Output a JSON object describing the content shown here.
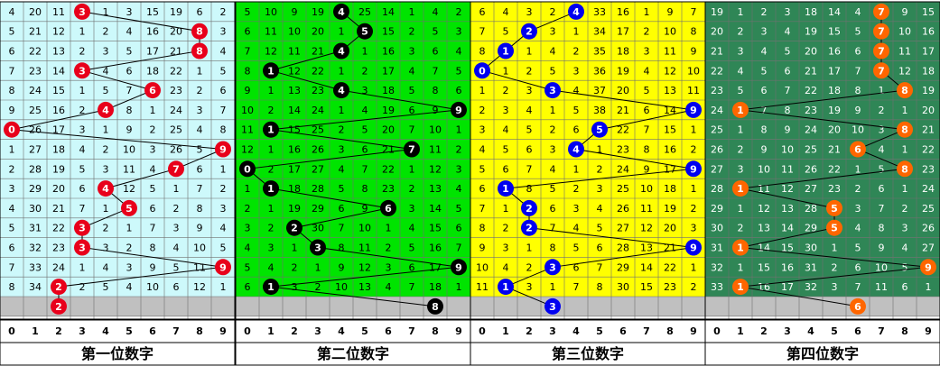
{
  "chart_data": {
    "type": "table",
    "columns_per_section": 10,
    "column_digits": [
      "0",
      "1",
      "2",
      "3",
      "4",
      "5",
      "6",
      "7",
      "8",
      "9"
    ],
    "sections": [
      {
        "title": "第一位数字",
        "cell_color": "#cdf9fb",
        "ball_color": "#e8001b",
        "line_color": "#000000",
        "rows": [
          [
            "4",
            "20",
            "11",
            "3",
            "1",
            "3",
            "15",
            "19",
            "6",
            "2"
          ],
          [
            "5",
            "21",
            "12",
            "1",
            "2",
            "4",
            "16",
            "20",
            "8",
            "3"
          ],
          [
            "6",
            "22",
            "13",
            "2",
            "3",
            "5",
            "17",
            "21",
            "8",
            "4"
          ],
          [
            "7",
            "23",
            "14",
            "3",
            "4",
            "6",
            "18",
            "22",
            "1",
            "5"
          ],
          [
            "8",
            "24",
            "15",
            "1",
            "5",
            "7",
            "6",
            "23",
            "2",
            "6"
          ],
          [
            "9",
            "25",
            "16",
            "2",
            "4",
            "8",
            "1",
            "24",
            "3",
            "7"
          ],
          [
            "0",
            "26",
            "17",
            "3",
            "1",
            "9",
            "2",
            "25",
            "4",
            "8"
          ],
          [
            "1",
            "27",
            "18",
            "4",
            "2",
            "10",
            "3",
            "26",
            "5",
            "9"
          ],
          [
            "2",
            "28",
            "19",
            "5",
            "3",
            "11",
            "4",
            "7",
            "6",
            "1"
          ],
          [
            "3",
            "29",
            "20",
            "6",
            "4",
            "12",
            "5",
            "1",
            "7",
            "2"
          ],
          [
            "4",
            "30",
            "21",
            "7",
            "1",
            "5",
            "6",
            "2",
            "8",
            "3"
          ],
          [
            "5",
            "31",
            "22",
            "3",
            "2",
            "1",
            "7",
            "3",
            "9",
            "4"
          ],
          [
            "6",
            "32",
            "23",
            "3",
            "3",
            "2",
            "8",
            "4",
            "10",
            "5"
          ],
          [
            "7",
            "33",
            "24",
            "1",
            "4",
            "3",
            "9",
            "5",
            "11",
            "9"
          ],
          [
            "8",
            "34",
            "2",
            "2",
            "5",
            "4",
            "10",
            "6",
            "12",
            "1"
          ],
          [
            "",
            "",
            "2",
            "",
            "",
            "",
            "",
            "",
            "",
            ""
          ]
        ],
        "draws": [
          3,
          8,
          8,
          3,
          6,
          4,
          0,
          9,
          7,
          4,
          5,
          3,
          3,
          9,
          2,
          2
        ]
      },
      {
        "title": "第二位数字",
        "cell_color": "#00e400",
        "ball_color": "#000000",
        "line_color": "#000000",
        "rows": [
          [
            "5",
            "10",
            "9",
            "19",
            "4",
            "25",
            "14",
            "1",
            "4",
            "2"
          ],
          [
            "6",
            "11",
            "10",
            "20",
            "1",
            "5",
            "15",
            "2",
            "5",
            "3"
          ],
          [
            "7",
            "12",
            "11",
            "21",
            "4",
            "1",
            "16",
            "3",
            "6",
            "4"
          ],
          [
            "8",
            "1",
            "12",
            "22",
            "1",
            "2",
            "17",
            "4",
            "7",
            "5"
          ],
          [
            "9",
            "1",
            "13",
            "23",
            "4",
            "3",
            "18",
            "5",
            "8",
            "6"
          ],
          [
            "10",
            "2",
            "14",
            "24",
            "1",
            "4",
            "19",
            "6",
            "9",
            "9"
          ],
          [
            "11",
            "1",
            "15",
            "25",
            "2",
            "5",
            "20",
            "7",
            "10",
            "1"
          ],
          [
            "12",
            "1",
            "16",
            "26",
            "3",
            "6",
            "21",
            "7",
            "11",
            "2"
          ],
          [
            "0",
            "2",
            "17",
            "27",
            "4",
            "7",
            "22",
            "1",
            "12",
            "3"
          ],
          [
            "1",
            "1",
            "18",
            "28",
            "5",
            "8",
            "23",
            "2",
            "13",
            "4"
          ],
          [
            "2",
            "1",
            "19",
            "29",
            "6",
            "9",
            "6",
            "3",
            "14",
            "5"
          ],
          [
            "3",
            "2",
            "2",
            "30",
            "7",
            "10",
            "1",
            "4",
            "15",
            "6"
          ],
          [
            "4",
            "3",
            "1",
            "3",
            "8",
            "11",
            "2",
            "5",
            "16",
            "7"
          ],
          [
            "5",
            "4",
            "2",
            "1",
            "9",
            "12",
            "3",
            "6",
            "17",
            "9"
          ],
          [
            "6",
            "1",
            "3",
            "2",
            "10",
            "13",
            "4",
            "7",
            "18",
            "1"
          ],
          [
            "",
            "",
            "",
            "",
            "",
            "",
            "",
            "",
            "8",
            ""
          ]
        ],
        "draws": [
          4,
          5,
          4,
          1,
          4,
          9,
          1,
          7,
          0,
          1,
          6,
          2,
          3,
          9,
          1,
          8
        ]
      },
      {
        "title": "第三位数字",
        "cell_color": "#ffff00",
        "ball_color": "#0000f0",
        "line_color": "#000000",
        "rows": [
          [
            "6",
            "4",
            "3",
            "2",
            "4",
            "33",
            "16",
            "1",
            "9",
            "7"
          ],
          [
            "7",
            "5",
            "2",
            "3",
            "1",
            "34",
            "17",
            "2",
            "10",
            "8"
          ],
          [
            "8",
            "1",
            "1",
            "4",
            "2",
            "35",
            "18",
            "3",
            "11",
            "9"
          ],
          [
            "0",
            "1",
            "2",
            "5",
            "3",
            "36",
            "19",
            "4",
            "12",
            "10"
          ],
          [
            "1",
            "2",
            "3",
            "3",
            "4",
            "37",
            "20",
            "5",
            "13",
            "11"
          ],
          [
            "2",
            "3",
            "4",
            "1",
            "5",
            "38",
            "21",
            "6",
            "14",
            "9"
          ],
          [
            "3",
            "4",
            "5",
            "2",
            "6",
            "5",
            "22",
            "7",
            "15",
            "1"
          ],
          [
            "4",
            "5",
            "6",
            "3",
            "4",
            "1",
            "23",
            "8",
            "16",
            "2"
          ],
          [
            "5",
            "6",
            "7",
            "4",
            "1",
            "2",
            "24",
            "9",
            "17",
            "9"
          ],
          [
            "6",
            "1",
            "8",
            "5",
            "2",
            "3",
            "25",
            "10",
            "18",
            "1"
          ],
          [
            "7",
            "1",
            "2",
            "6",
            "3",
            "4",
            "26",
            "11",
            "19",
            "2"
          ],
          [
            "8",
            "2",
            "2",
            "7",
            "4",
            "5",
            "27",
            "12",
            "20",
            "3"
          ],
          [
            "9",
            "3",
            "1",
            "8",
            "5",
            "6",
            "28",
            "13",
            "21",
            "9"
          ],
          [
            "10",
            "4",
            "2",
            "3",
            "6",
            "7",
            "29",
            "14",
            "22",
            "1"
          ],
          [
            "11",
            "1",
            "3",
            "1",
            "7",
            "8",
            "30",
            "15",
            "23",
            "2"
          ],
          [
            "",
            "",
            "",
            "3",
            "",
            "",
            "",
            "",
            "",
            ""
          ]
        ],
        "draws": [
          4,
          2,
          1,
          0,
          3,
          9,
          5,
          4,
          9,
          1,
          2,
          2,
          9,
          3,
          1,
          3
        ]
      },
      {
        "title": "第四位数字",
        "cell_color": "#2f8656",
        "ball_color": "#ff6600",
        "line_color": "#000000",
        "rows": [
          [
            "19",
            "1",
            "2",
            "3",
            "18",
            "14",
            "4",
            "7",
            "9",
            "15"
          ],
          [
            "20",
            "2",
            "3",
            "4",
            "19",
            "15",
            "5",
            "7",
            "10",
            "16"
          ],
          [
            "21",
            "3",
            "4",
            "5",
            "20",
            "16",
            "6",
            "7",
            "11",
            "17"
          ],
          [
            "22",
            "4",
            "5",
            "6",
            "21",
            "17",
            "7",
            "7",
            "12",
            "18"
          ],
          [
            "23",
            "5",
            "6",
            "7",
            "22",
            "18",
            "8",
            "1",
            "8",
            "19"
          ],
          [
            "24",
            "1",
            "7",
            "8",
            "23",
            "19",
            "9",
            "2",
            "1",
            "20"
          ],
          [
            "25",
            "1",
            "8",
            "9",
            "24",
            "20",
            "10",
            "3",
            "8",
            "21"
          ],
          [
            "26",
            "2",
            "9",
            "10",
            "25",
            "21",
            "6",
            "4",
            "1",
            "22"
          ],
          [
            "27",
            "3",
            "10",
            "11",
            "26",
            "22",
            "1",
            "5",
            "8",
            "23"
          ],
          [
            "28",
            "1",
            "11",
            "12",
            "27",
            "23",
            "2",
            "6",
            "1",
            "24"
          ],
          [
            "29",
            "1",
            "12",
            "13",
            "28",
            "5",
            "3",
            "7",
            "2",
            "25"
          ],
          [
            "30",
            "2",
            "13",
            "14",
            "29",
            "5",
            "4",
            "8",
            "3",
            "26"
          ],
          [
            "31",
            "1",
            "14",
            "15",
            "30",
            "1",
            "5",
            "9",
            "4",
            "27"
          ],
          [
            "32",
            "1",
            "15",
            "16",
            "31",
            "2",
            "6",
            "10",
            "5",
            "9"
          ],
          [
            "33",
            "1",
            "16",
            "17",
            "32",
            "3",
            "7",
            "11",
            "6",
            "1"
          ],
          [
            "",
            "",
            "",
            "",
            "",
            "",
            "6",
            "",
            "",
            ""
          ]
        ],
        "draws": [
          7,
          7,
          7,
          7,
          8,
          1,
          8,
          6,
          8,
          1,
          5,
          5,
          1,
          9,
          1,
          6
        ]
      }
    ]
  }
}
